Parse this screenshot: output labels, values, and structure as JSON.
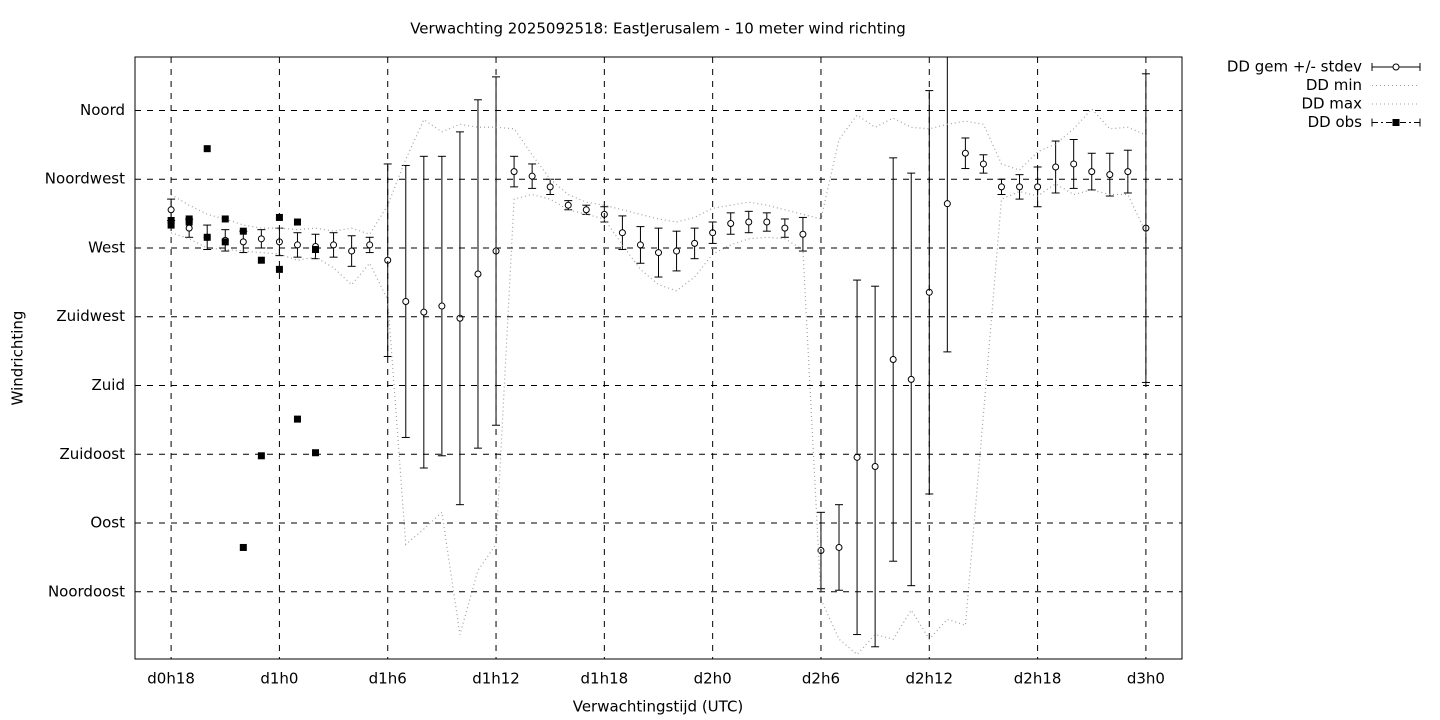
{
  "chart_data": {
    "type": "errorbar",
    "title": "Verwachting 2025092518: EastJerusalem - 10 meter wind richting",
    "x_label": "Verwachtingstijd (UTC)",
    "y_label": "Windrichting",
    "x": [
      18,
      19,
      20,
      21,
      22,
      23,
      24,
      25,
      26,
      27,
      28,
      29,
      30,
      31,
      32,
      33,
      34,
      35,
      36,
      37,
      38,
      39,
      40,
      41,
      42,
      43,
      44,
      45,
      46,
      47,
      48,
      49,
      50,
      51,
      52,
      53,
      54,
      55,
      56,
      57,
      58,
      59,
      60,
      61,
      62,
      63,
      64,
      65,
      66,
      67,
      68,
      69,
      70,
      71,
      72
    ],
    "series": [
      {
        "name": "DD gem +/- stdev",
        "color": "#000000",
        "style": "errorbar",
        "values": [
          295,
          283,
          277,
          275,
          274,
          276,
          274,
          272,
          271,
          272,
          268,
          272,
          262,
          235,
          228,
          232,
          224,
          253,
          268,
          320,
          317,
          310,
          298,
          295,
          292,
          280,
          272,
          267,
          268,
          273,
          280,
          286,
          287,
          287,
          283,
          279,
          72,
          74,
          133,
          127,
          197,
          184,
          241,
          299,
          332,
          325,
          310,
          310,
          310,
          323,
          325,
          320,
          318,
          320,
          283
        ],
        "errors": [
          7,
          6,
          8,
          7,
          7,
          6,
          9,
          8,
          8,
          8,
          10,
          5,
          63,
          89,
          102,
          98,
          122,
          114,
          114,
          10,
          8,
          5,
          3,
          3,
          5,
          11,
          12,
          16,
          13,
          10,
          7,
          7,
          7,
          6,
          6,
          11,
          25,
          28,
          116,
          118,
          132,
          135,
          132,
          97,
          10,
          6,
          5,
          8,
          13,
          17,
          16,
          12,
          14,
          14,
          101
        ]
      },
      {
        "name": "DD min",
        "color": "#a0a0a0",
        "style": "dotted",
        "values": [
          280,
          276,
          270,
          269,
          268,
          267,
          266,
          262,
          264,
          257,
          246,
          260,
          236,
          76,
          86,
          97,
          17,
          59,
          76,
          302,
          305,
          302,
          295,
          292,
          289,
          272,
          256,
          246,
          242,
          251,
          266,
          272,
          276,
          277,
          276,
          269,
          40,
          14,
          4,
          17,
          14,
          33,
          14,
          27,
          23,
          161,
          302,
          307,
          304,
          312,
          305,
          308,
          305,
          305,
          280
        ]
      },
      {
        "name": "DD max",
        "color": "#a0a0a0",
        "style": "dotted",
        "values": [
          305,
          298,
          292,
          289,
          285,
          283,
          283,
          282,
          283,
          281,
          283,
          279,
          298,
          328,
          354,
          346,
          351,
          349,
          349,
          348,
          331,
          315,
          305,
          300,
          298,
          295,
          292,
          289,
          287,
          290,
          296,
          298,
          300,
          298,
          295,
          292,
          289,
          341,
          357,
          349,
          355,
          349,
          348,
          351,
          353,
          351,
          325,
          321,
          333,
          338,
          348,
          361,
          348,
          349,
          344
        ]
      },
      {
        "name": "DD obs",
        "color": "#000000",
        "style": "square",
        "x": [
          18,
          18,
          19,
          19,
          20,
          20,
          21,
          21,
          22,
          22,
          23,
          23,
          24,
          24,
          25,
          25,
          26,
          26
        ],
        "values": [
          288,
          285,
          289,
          287,
          335,
          277,
          289,
          274,
          281,
          74,
          262,
          134,
          290,
          256,
          287,
          158,
          269,
          136
        ]
      }
    ],
    "xlim": [
      16,
      74
    ],
    "xticks": [
      {
        "value": 18,
        "label": "d0h18"
      },
      {
        "value": 24,
        "label": "d1h0"
      },
      {
        "value": 30,
        "label": "d1h6"
      },
      {
        "value": 36,
        "label": "d1h12"
      },
      {
        "value": 42,
        "label": "d1h18"
      },
      {
        "value": 48,
        "label": "d2h0"
      },
      {
        "value": 54,
        "label": "d2h6"
      },
      {
        "value": 60,
        "label": "d2h12"
      },
      {
        "value": 66,
        "label": "d2h18"
      },
      {
        "value": 72,
        "label": "d3h0"
      }
    ],
    "ylim": [
      1,
      395
    ],
    "yticks": [
      {
        "value": 45,
        "label": "Noordoost"
      },
      {
        "value": 90,
        "label": "Oost"
      },
      {
        "value": 135,
        "label": "Zuidoost"
      },
      {
        "value": 180,
        "label": "Zuid"
      },
      {
        "value": 225,
        "label": "Zuidwest"
      },
      {
        "value": 270,
        "label": "West"
      },
      {
        "value": 315,
        "label": "Noordwest"
      },
      {
        "value": 360,
        "label": "Noord"
      }
    ],
    "grid": true,
    "legend": "outside-top-right"
  }
}
